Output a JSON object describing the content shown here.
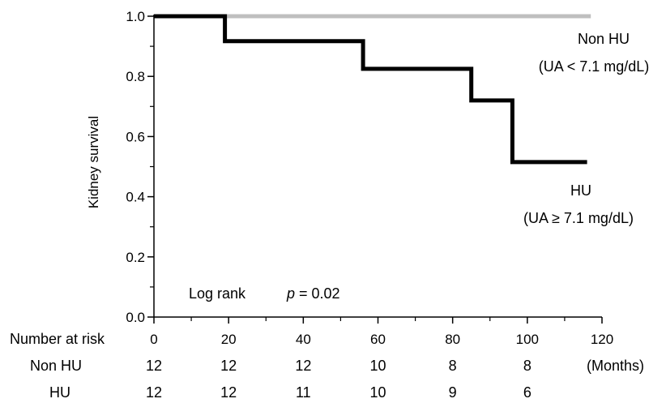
{
  "chart_data": {
    "type": "line",
    "subtype": "kaplan-meier step",
    "xlabel": "",
    "x_unit": "(Months)",
    "ylabel": "Kidney survival",
    "xlim": [
      0,
      120
    ],
    "ylim": [
      0.0,
      1.0
    ],
    "x_ticks": [
      0,
      20,
      40,
      60,
      80,
      100,
      120
    ],
    "y_ticks": [
      "0.0",
      "0.2",
      "0.4",
      "0.6",
      "0.8",
      "1.0"
    ],
    "grid": false,
    "series": [
      {
        "name": "Non HU",
        "label_line1": "Non HU",
        "label_line2": "(UA < 7.1 mg/dL)",
        "color": "#bfbfbf",
        "x": [
          0,
          117
        ],
        "y": [
          1.0,
          1.0
        ]
      },
      {
        "name": "HU",
        "label_line1": "HU",
        "label_line2": "(UA ≥ 7.1 mg/dL)",
        "color": "#000000",
        "x": [
          0,
          19,
          19,
          56,
          56,
          85,
          85,
          96,
          96,
          116
        ],
        "y": [
          1.0,
          1.0,
          0.917,
          0.917,
          0.825,
          0.825,
          0.72,
          0.72,
          0.515,
          0.515
        ]
      }
    ],
    "annotation": {
      "prefix": "Log rank",
      "p_symbol": "p",
      "p_value": " = 0.02"
    },
    "risk_table": {
      "header": "Number at risk",
      "times": [
        0,
        20,
        40,
        60,
        80,
        100
      ],
      "rows": [
        {
          "label": "Non HU",
          "values": [
            "12",
            "12",
            "12",
            "10",
            "8",
            "8"
          ]
        },
        {
          "label": "HU",
          "values": [
            "12",
            "12",
            "11",
            "10",
            "9",
            "6"
          ]
        }
      ]
    }
  }
}
